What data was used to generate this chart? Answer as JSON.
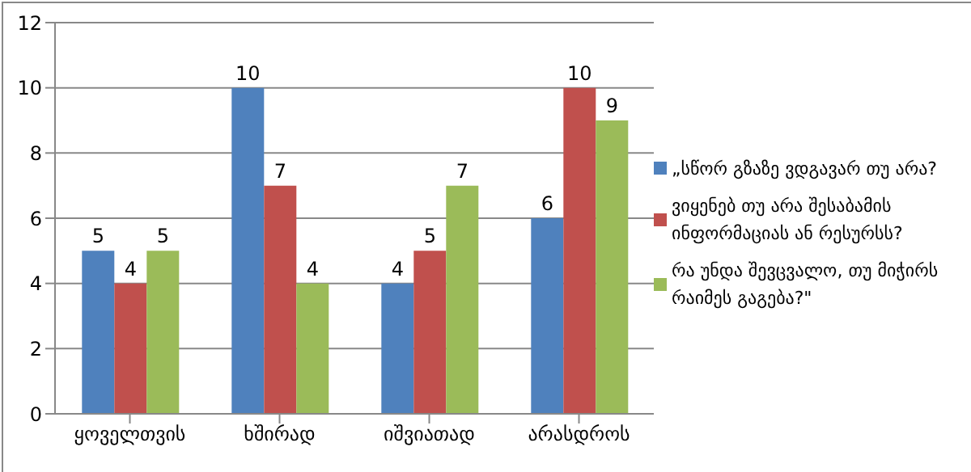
{
  "chart_data": {
    "type": "bar",
    "categories": [
      "ყოველთვის",
      "ხშირად",
      "იშვიათად",
      "არასდროს"
    ],
    "series": [
      {
        "name": "„სწორ გზაზე ვდგავარ თუ არა?",
        "color": "#4f81bd",
        "values": [
          5,
          10,
          4,
          6
        ]
      },
      {
        "name": "ვიყენებ თუ არა შესაბამის ინფორმაციას ან რესურსს?",
        "color": "#c0504d",
        "values": [
          4,
          7,
          5,
          10
        ]
      },
      {
        "name": "რა უნდა შევცვალო, თუ მიჭირს რაიმეს გაგება?\"",
        "color": "#9bbb59",
        "values": [
          5,
          4,
          7,
          9
        ]
      }
    ],
    "ylim": [
      0,
      12
    ],
    "yticks": [
      0,
      2,
      4,
      6,
      8,
      10,
      12
    ],
    "grid": "y",
    "legend": "right",
    "data_labels": true
  }
}
